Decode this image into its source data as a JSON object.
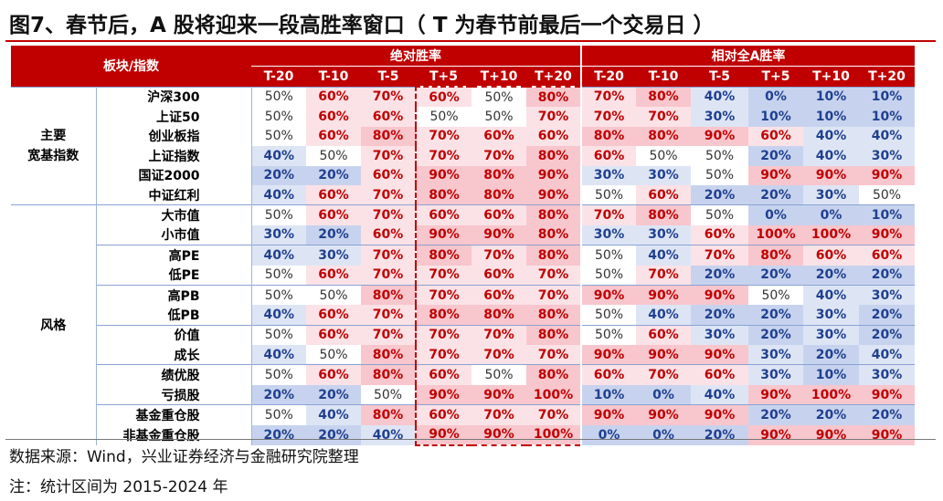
{
  "title": "图7、春节后，A 股将迎来一段高胜率窗口（ T 为春节前最后一个交易日 ）",
  "header": {
    "corner": "板块/指数",
    "group_abs": "绝对胜率",
    "group_rel": "相对全A胜率",
    "cols": [
      "T-20",
      "T-10",
      "T-5",
      "T+5",
      "T+10",
      "T+20"
    ]
  },
  "groups": [
    {
      "name": "主要\n宽基指数",
      "rows": [
        {
          "name": "沪深300",
          "abs": [
            "50%",
            "60%",
            "70%",
            "60%",
            "50%",
            "80%"
          ],
          "rel": [
            "70%",
            "80%",
            "40%",
            "0%",
            "10%",
            "10%"
          ]
        },
        {
          "name": "上证50",
          "abs": [
            "50%",
            "60%",
            "60%",
            "50%",
            "50%",
            "70%"
          ],
          "rel": [
            "70%",
            "70%",
            "30%",
            "10%",
            "10%",
            "10%"
          ]
        },
        {
          "name": "创业板指",
          "abs": [
            "50%",
            "60%",
            "80%",
            "70%",
            "60%",
            "60%"
          ],
          "rel": [
            "80%",
            "80%",
            "90%",
            "60%",
            "40%",
            "40%"
          ]
        },
        {
          "name": "上证指数",
          "abs": [
            "40%",
            "50%",
            "70%",
            "70%",
            "70%",
            "80%"
          ],
          "rel": [
            "60%",
            "50%",
            "50%",
            "20%",
            "40%",
            "30%"
          ]
        },
        {
          "name": "国证2000",
          "abs": [
            "20%",
            "20%",
            "60%",
            "90%",
            "80%",
            "90%"
          ],
          "rel": [
            "30%",
            "30%",
            "50%",
            "90%",
            "90%",
            "90%"
          ]
        },
        {
          "name": "中证红利",
          "abs": [
            "40%",
            "60%",
            "70%",
            "80%",
            "80%",
            "90%"
          ],
          "rel": [
            "50%",
            "60%",
            "20%",
            "20%",
            "30%",
            "50%"
          ]
        }
      ]
    },
    {
      "name": "风格",
      "rows": [
        {
          "name": "大市值",
          "abs": [
            "50%",
            "60%",
            "70%",
            "60%",
            "60%",
            "80%"
          ],
          "rel": [
            "70%",
            "80%",
            "50%",
            "0%",
            "0%",
            "10%"
          ]
        },
        {
          "name": "小市值",
          "abs": [
            "30%",
            "20%",
            "60%",
            "90%",
            "90%",
            "80%"
          ],
          "rel": [
            "30%",
            "30%",
            "60%",
            "100%",
            "100%",
            "90%"
          ]
        },
        {
          "name": "高PE",
          "abs": [
            "40%",
            "30%",
            "70%",
            "80%",
            "70%",
            "80%"
          ],
          "rel": [
            "50%",
            "40%",
            "70%",
            "80%",
            "60%",
            "60%"
          ]
        },
        {
          "name": "低PE",
          "abs": [
            "50%",
            "60%",
            "70%",
            "70%",
            "60%",
            "70%"
          ],
          "rel": [
            "50%",
            "70%",
            "20%",
            "20%",
            "20%",
            "20%"
          ]
        },
        {
          "name": "高PB",
          "abs": [
            "50%",
            "50%",
            "80%",
            "70%",
            "60%",
            "70%"
          ],
          "rel": [
            "90%",
            "90%",
            "90%",
            "50%",
            "40%",
            "30%"
          ]
        },
        {
          "name": "低PB",
          "abs": [
            "40%",
            "60%",
            "70%",
            "80%",
            "80%",
            "80%"
          ],
          "rel": [
            "50%",
            "40%",
            "20%",
            "20%",
            "30%",
            "20%"
          ]
        },
        {
          "name": "价值",
          "abs": [
            "50%",
            "60%",
            "70%",
            "70%",
            "70%",
            "80%"
          ],
          "rel": [
            "50%",
            "60%",
            "30%",
            "20%",
            "30%",
            "20%"
          ]
        },
        {
          "name": "成长",
          "abs": [
            "40%",
            "50%",
            "80%",
            "70%",
            "70%",
            "70%"
          ],
          "rel": [
            "90%",
            "90%",
            "90%",
            "30%",
            "20%",
            "40%"
          ]
        },
        {
          "name": "绩优股",
          "abs": [
            "50%",
            "60%",
            "80%",
            "60%",
            "50%",
            "80%"
          ],
          "rel": [
            "60%",
            "70%",
            "60%",
            "30%",
            "10%",
            "30%"
          ]
        },
        {
          "name": "亏损股",
          "abs": [
            "20%",
            "20%",
            "50%",
            "90%",
            "90%",
            "100%"
          ],
          "rel": [
            "10%",
            "0%",
            "40%",
            "90%",
            "100%",
            "90%"
          ]
        },
        {
          "name": "基金重仓股",
          "abs": [
            "50%",
            "40%",
            "80%",
            "60%",
            "70%",
            "70%"
          ],
          "rel": [
            "90%",
            "90%",
            "90%",
            "20%",
            "20%",
            "20%"
          ]
        },
        {
          "name": "非基金重仓股",
          "abs": [
            "20%",
            "20%",
            "40%",
            "90%",
            "90%",
            "100%"
          ],
          "rel": [
            "0%",
            "0%",
            "20%",
            "90%",
            "90%",
            "90%"
          ]
        }
      ]
    }
  ],
  "source": "数据来源：Wind，兴业证券经济与金融研究院整理",
  "note": "注：统计区间为 2015-2024 年",
  "colors": {
    "header_red": "#c00000",
    "high_bg": "#f8c6cd",
    "mid_bg": "#fbe2e6",
    "low_bg": "#c7d3ee",
    "lowmid_bg": "#dde5f5",
    "neutral_bg": "#ffffff",
    "high_text": "#c00000",
    "low_text": "#1f3f8f",
    "dash_border": "#c00000"
  }
}
